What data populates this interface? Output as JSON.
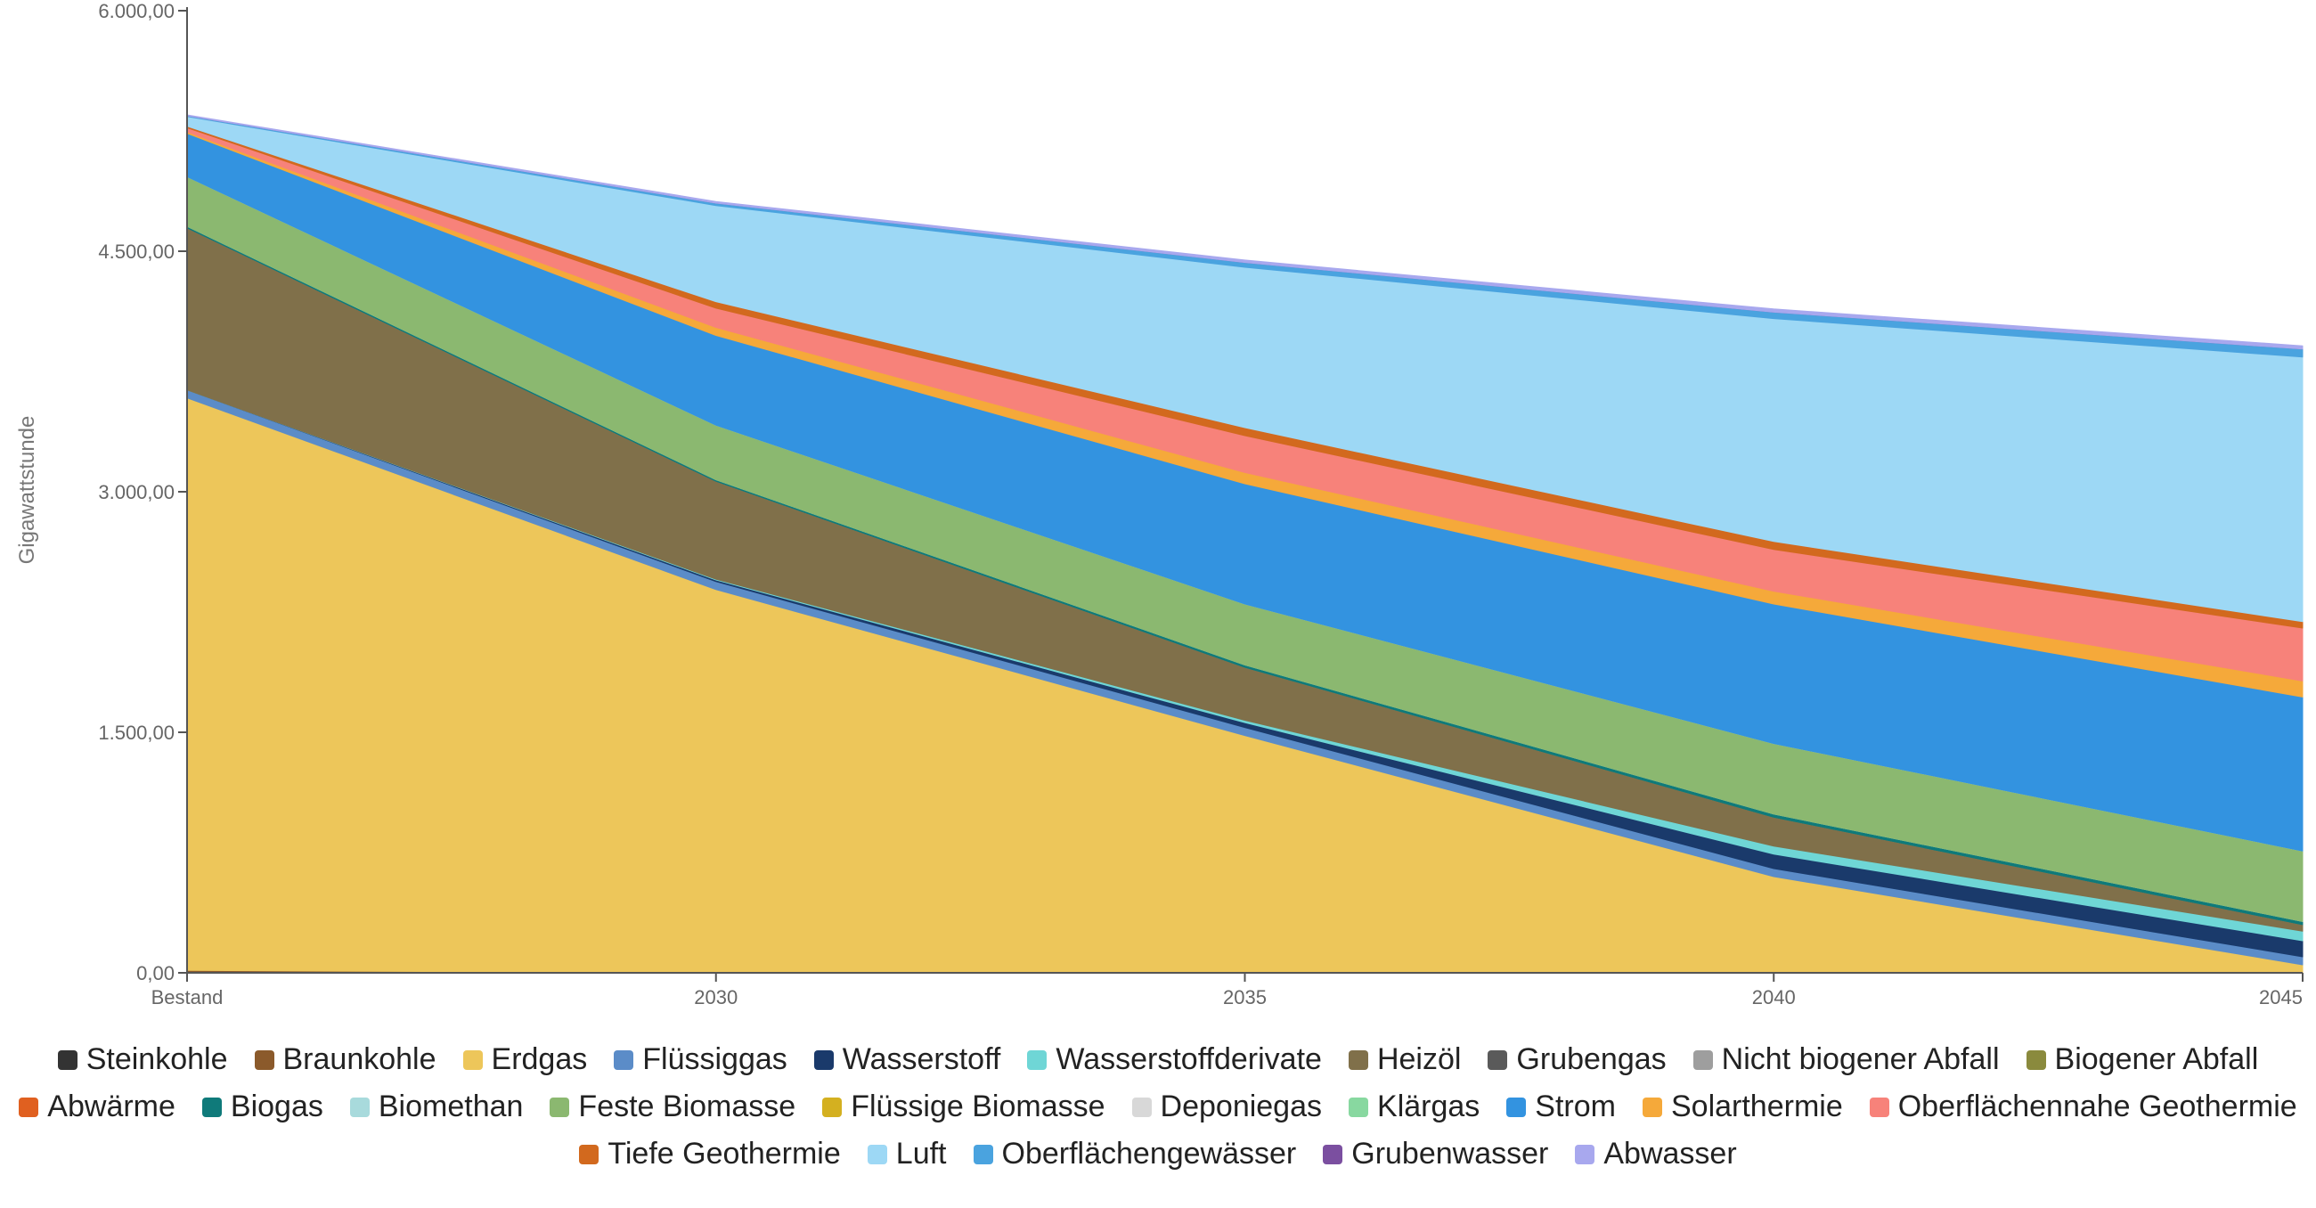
{
  "chart_data": {
    "type": "area",
    "stacked": true,
    "ylabel": "Gigawattstunde",
    "ylim": [
      0,
      6000
    ],
    "y_ticks": [
      "0,00",
      "1.500,00",
      "3.000,00",
      "4.500,00",
      "6.000,00"
    ],
    "y_tick_values": [
      0,
      1500,
      3000,
      4500,
      6000
    ],
    "categories": [
      "Bestand",
      "2030",
      "2035",
      "2040",
      "2045"
    ],
    "legend_position": "bottom",
    "series": [
      {
        "name": "Steinkohle",
        "color": "#333333",
        "values": [
          0,
          0,
          0,
          0,
          0
        ]
      },
      {
        "name": "Braunkohle",
        "color": "#8B5A2B",
        "values": [
          15,
          0,
          0,
          0,
          0
        ]
      },
      {
        "name": "Erdgas",
        "color": "#EDC65A",
        "values": [
          3570,
          2390,
          1480,
          600,
          50
        ]
      },
      {
        "name": "Flüssiggas",
        "color": "#5B8CC8",
        "values": [
          50,
          50,
          50,
          50,
          50
        ]
      },
      {
        "name": "Wasserstoff",
        "color": "#1A3A6B",
        "values": [
          0,
          10,
          30,
          90,
          100
        ]
      },
      {
        "name": "Wasserstoffderivate",
        "color": "#6FD6D6",
        "values": [
          0,
          5,
          15,
          50,
          60
        ]
      },
      {
        "name": "Heizöl",
        "color": "#80704A",
        "values": [
          1010,
          610,
          330,
          180,
          40
        ]
      },
      {
        "name": "Grubengas",
        "color": "#5A5A5A",
        "values": [
          0,
          0,
          0,
          0,
          0
        ]
      },
      {
        "name": "Nicht biogener Abfall",
        "color": "#9E9E9E",
        "values": [
          0,
          0,
          0,
          0,
          0
        ]
      },
      {
        "name": "Biogener Abfall",
        "color": "#8A8A3D",
        "values": [
          0,
          0,
          0,
          0,
          0
        ]
      },
      {
        "name": "Abwärme",
        "color": "#E06020",
        "values": [
          0,
          0,
          0,
          0,
          0
        ]
      },
      {
        "name": "Biogas",
        "color": "#0F7A7A",
        "values": [
          10,
          10,
          15,
          20,
          20
        ]
      },
      {
        "name": "Biomethan",
        "color": "#A8DADC",
        "values": [
          0,
          0,
          0,
          0,
          0
        ]
      },
      {
        "name": "Feste Biomasse",
        "color": "#8BB870",
        "values": [
          310,
          340,
          380,
          440,
          440
        ]
      },
      {
        "name": "Flüssige Biomasse",
        "color": "#D4B020",
        "values": [
          0,
          0,
          0,
          0,
          0
        ]
      },
      {
        "name": "Deponiegas",
        "color": "#D8D8D8",
        "values": [
          0,
          0,
          0,
          0,
          0
        ]
      },
      {
        "name": "Klärgas",
        "color": "#88D8A0",
        "values": [
          0,
          0,
          0,
          0,
          0
        ]
      },
      {
        "name": "Strom",
        "color": "#3393E0",
        "values": [
          270,
          560,
          750,
          870,
          960
        ]
      },
      {
        "name": "Solarthermie",
        "color": "#F5A93A",
        "values": [
          10,
          50,
          70,
          80,
          100
        ]
      },
      {
        "name": "Oberflächennahe Geothermie",
        "color": "#F7827A",
        "values": [
          25,
          120,
          230,
          260,
          330
        ]
      },
      {
        "name": "Tiefe Geothermie",
        "color": "#D2691E",
        "values": [
          10,
          40,
          50,
          50,
          40
        ]
      },
      {
        "name": "Luft",
        "color": "#9DD8F5",
        "values": [
          60,
          600,
          1000,
          1390,
          1650
        ]
      },
      {
        "name": "Oberflächengewässer",
        "color": "#4AA3DF",
        "values": [
          5,
          15,
          30,
          40,
          50
        ]
      },
      {
        "name": "Grubenwasser",
        "color": "#7B4FA0",
        "values": [
          0,
          0,
          0,
          0,
          0
        ]
      },
      {
        "name": "Abwasser",
        "color": "#A8A8EE",
        "values": [
          5,
          10,
          15,
          20,
          20
        ]
      }
    ]
  }
}
